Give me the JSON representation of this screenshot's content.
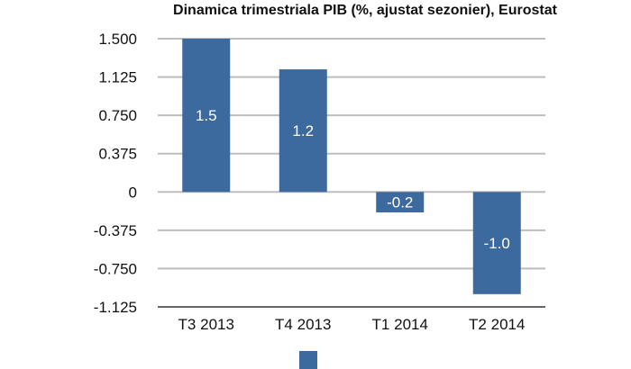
{
  "chart_data": {
    "type": "bar",
    "title": "Dinamica trimestriala PIB (%, ajustat sezonier), Eurostat",
    "categories": [
      "T3 2013",
      "T4 2013",
      "T1 2014",
      "T2 2014"
    ],
    "values": [
      1.5,
      1.2,
      -0.2,
      -1.0
    ],
    "data_labels": [
      "1.5",
      "1.2",
      "-0.2",
      "-1.0"
    ],
    "ylim": [
      -1.125,
      1.5
    ],
    "yticks": [
      1.5,
      1.125,
      0.75,
      0.375,
      0,
      -0.375,
      -0.75,
      -1.125
    ],
    "ytick_labels": [
      "1.500",
      "1.125",
      "0.750",
      "0.375",
      "0",
      "-0.375",
      "-0.750",
      "-1.125"
    ],
    "xlabel": "",
    "ylabel": "",
    "grid": true,
    "legend": "bottom",
    "bar_color": "#3d6a9e",
    "grid_color": "#bdbdbd"
  }
}
